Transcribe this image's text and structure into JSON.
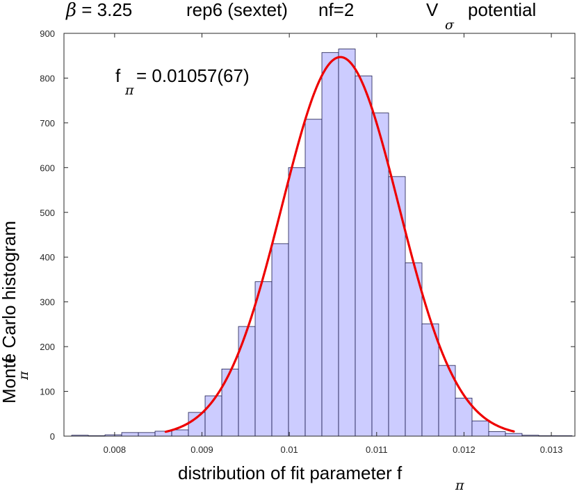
{
  "chart_data": {
    "type": "bar",
    "title_parts": {
      "beta_symbol": "β",
      "beta": " = 3.25",
      "rep": "rep6 (sextet)",
      "nf": "nf=2",
      "potential_letter": "V",
      "potential_sub": "σ",
      "potential_word": "potential"
    },
    "xlabel": "distribution of fit parameter  f",
    "xlabel_sub": "π",
    "ylabel": "Monte Carlo histogram",
    "ylabel_prefix": "f",
    "ylabel_sub": "π",
    "annotation": {
      "prefix": "f",
      "sub": "π",
      "text": " = 0.01057(67)"
    },
    "xlim": [
      0.00742,
      0.01327
    ],
    "ylim": [
      0,
      900
    ],
    "x_ticks": [
      0.008,
      0.009,
      0.01,
      0.011,
      0.012,
      0.013
    ],
    "x_tick_labels": [
      "0.008",
      "0.009",
      "0.01",
      "0.011",
      "0.012",
      "0.013"
    ],
    "y_ticks": [
      0,
      100,
      200,
      300,
      400,
      500,
      600,
      700,
      800,
      900
    ],
    "y_tick_labels": [
      "0",
      "100",
      "200",
      "300",
      "400",
      "500",
      "600",
      "700",
      "800",
      "900"
    ],
    "bin_width": 0.000191,
    "bin_start": 0.007508,
    "counts": [
      2,
      1,
      3,
      8,
      8,
      11,
      14,
      53,
      90,
      150,
      245,
      345,
      430,
      600,
      708,
      857,
      865,
      805,
      722,
      580,
      387,
      251,
      158,
      85,
      34,
      10,
      6,
      2,
      1,
      1
    ],
    "fit": {
      "type": "gaussian",
      "mean": 0.010585,
      "sigma": 0.00067,
      "peak": 847,
      "x_range": [
        0.008585,
        0.01257
      ]
    },
    "colors": {
      "bar_fill": "#ccccff",
      "bar_edge": "#1a1a4d",
      "fit_line": "#ee0000",
      "axis": "#262626"
    }
  }
}
